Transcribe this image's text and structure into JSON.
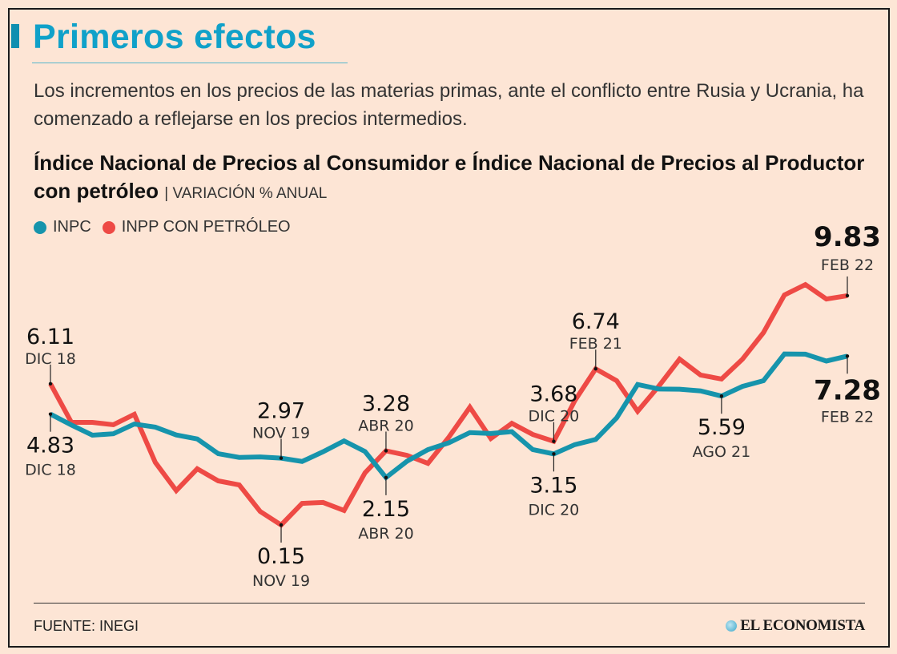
{
  "header": {
    "title": "Primeros efectos",
    "intro": "Los incrementos en los precios de las materias primas, ante el conflicto entre Rusia y Ucrania, ha comenzado a reflejarse en los precios intermedios."
  },
  "footer": {
    "source": "FUENTE: INEGI",
    "logo_text": "EL ECONOMISTA"
  },
  "chart_data": {
    "type": "line",
    "title": "Índice Nacional de Precios al Consumidor e Índice Nacional de Precios al Productor con petróleo",
    "unit": "VARIACIÓN % ANUAL",
    "legend_placement": "top-left",
    "grid": false,
    "x_range": [
      "DIC 18",
      "FEB 22"
    ],
    "x_frequency": "monthly",
    "ylim": [
      0,
      10.5
    ],
    "series": [
      {
        "name": "INPC",
        "color": "#1694ac",
        "values": [
          4.83,
          4.37,
          3.94,
          4.0,
          4.41,
          4.28,
          3.95,
          3.78,
          3.16,
          3.0,
          3.02,
          2.97,
          2.83,
          3.24,
          3.7,
          3.25,
          2.15,
          2.84,
          3.33,
          3.62,
          4.05,
          4.01,
          4.09,
          3.33,
          3.15,
          3.54,
          3.76,
          4.67,
          6.08,
          5.89,
          5.88,
          5.81,
          5.59,
          6.0,
          6.24,
          7.37,
          7.36,
          7.07,
          7.28
        ]
      },
      {
        "name": "INPP CON PETRÓLEO",
        "color": "#ee4a45",
        "values": [
          6.11,
          4.48,
          4.48,
          4.38,
          4.82,
          2.79,
          1.6,
          2.52,
          2.01,
          1.84,
          0.72,
          0.15,
          1.06,
          1.1,
          0.76,
          2.35,
          3.28,
          3.09,
          2.75,
          3.86,
          5.12,
          3.8,
          4.44,
          3.97,
          3.68,
          5.39,
          6.74,
          6.24,
          4.95,
          6.0,
          7.15,
          6.48,
          6.31,
          7.15,
          8.27,
          9.86,
          10.3,
          9.69,
          9.83
        ]
      }
    ],
    "annotations": [
      {
        "series": 1,
        "index": 0,
        "value": "6.11",
        "date": "DIC 18",
        "position": "above",
        "bold": false
      },
      {
        "series": 0,
        "index": 0,
        "value": "4.83",
        "date": "DIC 18",
        "position": "below",
        "bold": false
      },
      {
        "series": 0,
        "index": 11,
        "value": "2.97",
        "date": "NOV 19",
        "position": "above",
        "bold": false
      },
      {
        "series": 1,
        "index": 11,
        "value": "0.15",
        "date": "NOV 19",
        "position": "below",
        "bold": false
      },
      {
        "series": 1,
        "index": 16,
        "value": "3.28",
        "date": "ABR 20",
        "position": "above",
        "bold": false
      },
      {
        "series": 0,
        "index": 16,
        "value": "2.15",
        "date": "ABR 20",
        "position": "below",
        "bold": false
      },
      {
        "series": 1,
        "index": 24,
        "value": "3.68",
        "date": "DIC 20",
        "position": "above",
        "bold": false
      },
      {
        "series": 0,
        "index": 24,
        "value": "3.15",
        "date": "DIC 20",
        "position": "below",
        "bold": false
      },
      {
        "series": 1,
        "index": 26,
        "value": "6.74",
        "date": "FEB 21",
        "position": "above",
        "bold": false
      },
      {
        "series": 0,
        "index": 32,
        "value": "5.59",
        "date": "AGO 21",
        "position": "below",
        "bold": false
      },
      {
        "series": 1,
        "index": 38,
        "value": "9.83",
        "date": "FEB 22",
        "position": "above",
        "bold": true
      },
      {
        "series": 0,
        "index": 38,
        "value": "7.28",
        "date": "FEB 22",
        "position": "below",
        "bold": true
      }
    ]
  }
}
